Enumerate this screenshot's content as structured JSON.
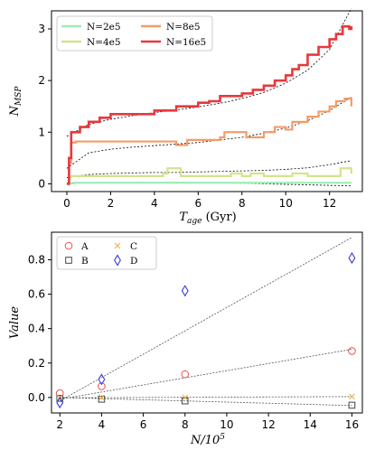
{
  "chart_data": [
    {
      "type": "line",
      "title": "",
      "xlabel": "T",
      "xlabel_sub": "age",
      "xlabel_unit": " (Gyr)",
      "ylabel": "N",
      "ylabel_sub": "MSP",
      "xlim": [
        -0.7,
        13.5
      ],
      "ylim": [
        -0.15,
        3.35
      ],
      "xticks": [
        0,
        2,
        4,
        6,
        8,
        10,
        12
      ],
      "yticks": [
        0,
        1,
        2,
        3
      ],
      "legend": "top-left, 2 columns",
      "grid": false,
      "series": [
        {
          "name": "N=2e5",
          "color": "#a0ecb8",
          "x": [
            0,
            0.05,
            0.3,
            1,
            2,
            4,
            5,
            6,
            8,
            10,
            12,
            13
          ],
          "y": [
            0,
            0.01,
            0.02,
            0.02,
            0.02,
            0.02,
            0.02,
            0.02,
            0.02,
            0.02,
            0.02,
            0.02
          ],
          "fit": [
            0.01,
            0.02,
            0.025,
            0.03,
            0.03,
            0.03,
            0.03,
            0.02,
            0.01,
            0.0,
            -0.01,
            -0.02,
            -0.03,
            -0.04
          ]
        },
        {
          "name": "N=4e5",
          "color": "#d6e28c",
          "x": [
            0,
            0.1,
            0.15,
            0.5,
            2,
            3,
            4,
            4.4,
            4.6,
            4.9,
            5.2,
            6,
            7,
            7.5,
            8,
            8.4,
            9,
            10,
            10.3,
            11,
            12,
            12.5,
            12.8,
            13
          ],
          "y": [
            0,
            0.1,
            0.15,
            0.15,
            0.15,
            0.15,
            0.15,
            0.2,
            0.3,
            0.3,
            0.15,
            0.15,
            0.15,
            0.2,
            0.15,
            0.2,
            0.15,
            0.15,
            0.2,
            0.15,
            0.15,
            0.3,
            0.3,
            0.2
          ],
          "fit": [
            0.12,
            0.18,
            0.2,
            0.21,
            0.22,
            0.22,
            0.23,
            0.24,
            0.25,
            0.26,
            0.28,
            0.31,
            0.37,
            0.45
          ]
        },
        {
          "name": "N=8e5",
          "color": "#f29c6a",
          "x": [
            0,
            0.1,
            0.2,
            0.4,
            2,
            3,
            4,
            5,
            5.5,
            6.5,
            7,
            7.2,
            7.8,
            8.2,
            9,
            9.5,
            10,
            10.3,
            11,
            11.5,
            12,
            12.3,
            12.7,
            13
          ],
          "y": [
            0,
            0.4,
            0.8,
            0.82,
            0.82,
            0.82,
            0.82,
            0.75,
            0.85,
            0.85,
            0.9,
            1.0,
            1.0,
            0.9,
            1.0,
            1.1,
            1.05,
            1.2,
            1.3,
            1.4,
            1.5,
            1.6,
            1.65,
            1.5
          ],
          "fit": [
            0.3,
            0.6,
            0.67,
            0.71,
            0.74,
            0.77,
            0.8,
            0.85,
            0.9,
            0.98,
            1.08,
            1.22,
            1.42,
            1.68
          ]
        },
        {
          "name": "N=16e5",
          "color": "#e8383c",
          "x": [
            0,
            0.1,
            0.2,
            0.6,
            1,
            1.5,
            2,
            3,
            4,
            5,
            6,
            6.5,
            7,
            8,
            8.5,
            9,
            9.5,
            10,
            10.3,
            10.6,
            11,
            11.5,
            12,
            12.3,
            12.6,
            12.9,
            13
          ],
          "y": [
            0,
            0.5,
            1.0,
            1.1,
            1.2,
            1.28,
            1.35,
            1.35,
            1.42,
            1.5,
            1.57,
            1.6,
            1.7,
            1.75,
            1.82,
            1.9,
            2.0,
            2.1,
            2.22,
            2.3,
            2.5,
            2.65,
            2.8,
            2.9,
            3.05,
            3.0,
            3.05
          ],
          "fit": [
            0.92,
            1.15,
            1.25,
            1.32,
            1.38,
            1.43,
            1.49,
            1.56,
            1.65,
            1.77,
            1.95,
            2.2,
            2.6,
            3.4
          ]
        }
      ],
      "fit_x": [
        0,
        1,
        2,
        3,
        4,
        5,
        6,
        7,
        8,
        9,
        10,
        11,
        12,
        13
      ]
    },
    {
      "type": "scatter",
      "title": "",
      "xlabel": "N/10",
      "xlabel_sup": "5",
      "ylabel": "Value",
      "xlim": [
        1.6,
        16.5
      ],
      "ylim": [
        -0.09,
        0.96
      ],
      "xticks": [
        2,
        4,
        6,
        8,
        10,
        12,
        14,
        16
      ],
      "yticks": [
        0.0,
        0.2,
        0.4,
        0.6,
        0.8
      ],
      "ytick_labels": [
        "0.0",
        "0.2",
        "0.4",
        "0.6",
        "0.8"
      ],
      "legend": "top-left, 2 columns",
      "grid": false,
      "series": [
        {
          "name": "A",
          "marker": "circle",
          "color": "#e8534f",
          "x": [
            2,
            4,
            8,
            16
          ],
          "y": [
            0.025,
            0.065,
            0.135,
            0.27
          ],
          "fit": [
            [
              2,
              -0.01
            ],
            [
              16,
              0.28
            ]
          ]
        },
        {
          "name": "B",
          "marker": "square",
          "color": "#444444",
          "x": [
            2,
            4,
            8,
            16
          ],
          "y": [
            -0.005,
            -0.01,
            -0.02,
            -0.045
          ],
          "fit": [
            [
              2,
              0.0
            ],
            [
              16,
              -0.047
            ]
          ]
        },
        {
          "name": "C",
          "marker": "x",
          "color": "#e8b04a",
          "x": [
            2,
            4,
            8,
            16
          ],
          "y": [
            0.0,
            0.0,
            0.0,
            0.005
          ],
          "fit": [
            [
              2,
              -0.002
            ],
            [
              16,
              0.005
            ]
          ]
        },
        {
          "name": "D",
          "marker": "diamond",
          "color": "#3a3ad6",
          "x": [
            2,
            4,
            8,
            16
          ],
          "y": [
            -0.03,
            0.105,
            0.62,
            0.81
          ],
          "fit": [
            [
              2,
              -0.02
            ],
            [
              16,
              0.93
            ]
          ]
        }
      ]
    }
  ]
}
